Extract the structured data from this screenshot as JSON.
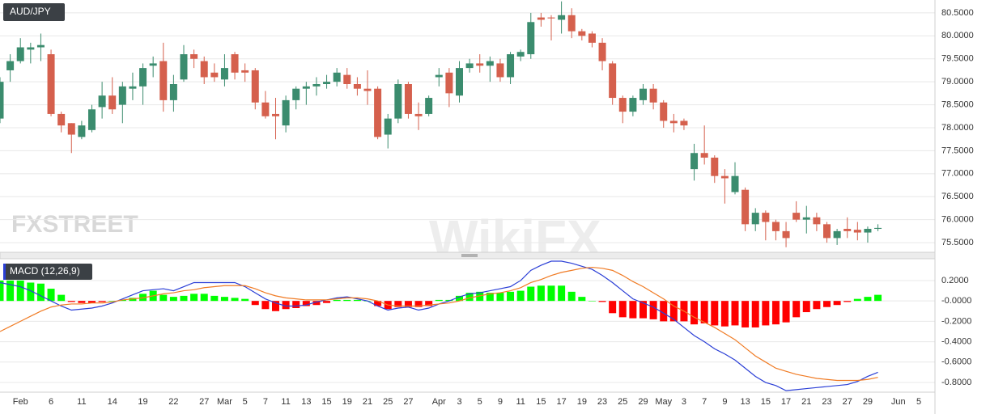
{
  "watermarks": [
    "FXSTREET",
    "WikiFX"
  ],
  "chart_data": [
    {
      "type": "candlestick",
      "title": "AUD/JPY",
      "up_color": "#3b8c6e",
      "down_color": "#d5604d",
      "grid": true,
      "ylim": [
        75.29,
        80.78
      ],
      "yticks": [
        {
          "value": 75.5,
          "label": "75.5000"
        },
        {
          "value": 76,
          "label": "76.0000"
        },
        {
          "value": 76.5,
          "label": "76.5000"
        },
        {
          "value": 77,
          "label": "77.0000"
        },
        {
          "value": 77.5,
          "label": "77.5000"
        },
        {
          "value": 78,
          "label": "78.0000"
        },
        {
          "value": 78.5,
          "label": "78.5000"
        },
        {
          "value": 79,
          "label": "79.0000"
        },
        {
          "value": 79.5,
          "label": "79.5000"
        },
        {
          "value": 80,
          "label": "80.0000"
        },
        {
          "value": 80.5,
          "label": "80.5000"
        }
      ],
      "open": [
        78.2,
        79.25,
        79.45,
        79.7,
        79.75,
        79.6,
        78.3,
        78.1,
        77.8,
        77.95,
        78.45,
        78.7,
        78.5,
        78.85,
        78.9,
        79.35,
        79.45,
        78.6,
        79.05,
        79.6,
        79.45,
        79.2,
        79.05,
        79.6,
        79.25,
        79.25,
        78.55,
        78.3,
        78.05,
        78.6,
        78.85,
        78.9,
        78.95,
        79.0,
        79.15,
        78.95,
        78.85,
        78.85,
        77.85,
        78.2,
        78.95,
        78.3,
        78.3,
        79.1,
        79.2,
        78.7,
        79.3,
        79.4,
        79.35,
        79.4,
        79.1,
        79.55,
        79.6,
        80.4,
        80.4,
        80.35,
        80.45,
        80.1,
        80.05,
        79.85,
        79.4,
        78.65,
        78.35,
        78.6,
        78.85,
        78.55,
        78.15,
        78.15,
        77.1,
        77.45,
        77.35,
        76.95,
        76.6,
        76.65,
        75.9,
        76.15,
        75.95,
        75.75,
        76.15,
        76.0,
        76.05,
        75.9,
        75.6,
        75.8,
        75.78,
        75.72,
        75.8,
        null,
        null,
        null,
        null
      ],
      "high": [
        79.1,
        79.6,
        79.95,
        79.85,
        80.05,
        79.7,
        78.35,
        78.1,
        78.15,
        78.5,
        79.0,
        79.1,
        79.0,
        79.2,
        79.4,
        79.55,
        79.85,
        79.15,
        79.8,
        79.7,
        79.55,
        79.4,
        79.6,
        79.65,
        79.4,
        79.3,
        78.8,
        78.65,
        78.7,
        78.9,
        79.0,
        79.1,
        79.15,
        79.3,
        79.3,
        79.1,
        79.25,
        78.9,
        78.3,
        79.05,
        79.0,
        78.55,
        78.7,
        79.3,
        79.3,
        79.45,
        79.5,
        79.6,
        79.55,
        79.5,
        79.65,
        79.7,
        80.5,
        80.5,
        80.45,
        80.75,
        80.6,
        80.15,
        80.1,
        79.95,
        79.45,
        78.7,
        78.7,
        78.95,
        78.95,
        78.6,
        78.3,
        78.2,
        77.65,
        78.05,
        77.4,
        77.1,
        77.25,
        76.7,
        76.25,
        76.2,
        76.0,
        75.95,
        76.4,
        76.3,
        76.15,
        75.95,
        75.8,
        76.05,
        75.95,
        75.85,
        75.9,
        null,
        null,
        null,
        null
      ],
      "low": [
        78.1,
        79.0,
        79.4,
        79.4,
        79.45,
        78.25,
        77.9,
        77.45,
        77.75,
        77.9,
        78.2,
        78.3,
        78.1,
        78.6,
        78.5,
        79.1,
        78.35,
        78.35,
        79.0,
        79.3,
        78.95,
        79.0,
        78.9,
        79.05,
        79.0,
        78.4,
        78.2,
        77.75,
        77.9,
        78.4,
        78.5,
        78.7,
        78.85,
        78.9,
        78.85,
        78.7,
        78.5,
        77.75,
        77.55,
        78.1,
        78.2,
        77.95,
        78.25,
        78.9,
        78.45,
        78.55,
        79.2,
        79.2,
        79.0,
        79.0,
        78.95,
        79.45,
        79.5,
        80.2,
        79.9,
        80.05,
        79.95,
        79.9,
        79.75,
        79.25,
        78.5,
        78.1,
        78.25,
        78.5,
        78.4,
        78.0,
        77.9,
        77.95,
        76.85,
        77.2,
        76.8,
        76.35,
        76.55,
        75.75,
        75.75,
        75.55,
        75.55,
        75.4,
        75.95,
        75.7,
        75.75,
        75.5,
        75.45,
        75.6,
        75.55,
        75.5,
        75.75,
        null,
        null,
        null,
        null
      ],
      "close": [
        79.0,
        79.45,
        79.75,
        79.75,
        79.8,
        78.3,
        78.05,
        77.85,
        78.05,
        78.4,
        78.7,
        78.4,
        78.9,
        78.9,
        79.3,
        79.4,
        78.6,
        78.95,
        79.6,
        79.5,
        79.1,
        79.1,
        79.3,
        79.2,
        79.2,
        78.55,
        78.25,
        78.25,
        78.6,
        78.85,
        78.9,
        78.95,
        79.0,
        79.2,
        78.95,
        78.85,
        78.8,
        77.8,
        78.2,
        78.95,
        78.3,
        78.25,
        78.65,
        79.15,
        78.75,
        79.3,
        79.4,
        79.35,
        79.45,
        79.1,
        79.6,
        79.65,
        80.3,
        80.35,
        80.38,
        80.45,
        80.1,
        80.0,
        79.85,
        79.45,
        78.65,
        78.35,
        78.65,
        78.85,
        78.55,
        78.15,
        78.1,
        78.05,
        77.45,
        77.35,
        76.95,
        76.9,
        76.95,
        75.9,
        76.15,
        75.95,
        75.75,
        75.6,
        76.0,
        76.05,
        75.9,
        75.6,
        75.75,
        75.75,
        75.72,
        75.8,
        75.82,
        null,
        null,
        null,
        null
      ]
    },
    {
      "type": "macd",
      "title": "MACD (12,26,9)",
      "grid": true,
      "ylim": [
        -0.895,
        0.398
      ],
      "yticks": [
        {
          "value": 0.2,
          "label": "0.2000"
        },
        {
          "value": 0,
          "label": "-0.0000"
        },
        {
          "value": -0.2,
          "label": "-0.2000"
        },
        {
          "value": -0.4,
          "label": "-0.4000"
        },
        {
          "value": -0.6,
          "label": "-0.6000"
        },
        {
          "value": -0.8,
          "label": "-0.8000"
        }
      ],
      "categories": [
        null,
        null,
        "Feb",
        null,
        null,
        "6",
        null,
        null,
        "11",
        null,
        null,
        "14",
        null,
        null,
        "19",
        null,
        null,
        "22",
        null,
        null,
        "27",
        null,
        "Mar",
        null,
        "5",
        null,
        "7",
        null,
        "11",
        null,
        "13",
        null,
        "15",
        null,
        "19",
        null,
        "21",
        null,
        "25",
        null,
        "27",
        null,
        null,
        "Apr",
        null,
        "3",
        null,
        "5",
        null,
        "9",
        null,
        "11",
        null,
        "15",
        null,
        "17",
        null,
        "19",
        null,
        "23",
        null,
        "25",
        null,
        "29",
        null,
        "May",
        null,
        "3",
        null,
        "7",
        null,
        "9",
        null,
        "13",
        null,
        "15",
        null,
        "17",
        null,
        "21",
        null,
        "23",
        null,
        "27",
        null,
        "29",
        null,
        null,
        "Jun",
        null,
        "5"
      ],
      "histogram": {
        "pos_color": "#00ff00",
        "neg_color": "#ff0000",
        "values": [
          0.2,
          0.2,
          0.2,
          0.18,
          0.17,
          0.12,
          0.06,
          -0.01,
          -0.02,
          -0.02,
          -0.01,
          0.0,
          0.01,
          0.03,
          0.07,
          0.1,
          0.06,
          0.04,
          0.05,
          0.07,
          0.07,
          0.05,
          0.04,
          0.03,
          0.02,
          -0.04,
          -0.08,
          -0.1,
          -0.08,
          -0.07,
          -0.05,
          -0.04,
          -0.02,
          0.01,
          0.01,
          0.01,
          0.0,
          -0.05,
          -0.08,
          -0.06,
          -0.06,
          -0.06,
          -0.05,
          0.01,
          0.01,
          0.05,
          0.08,
          0.09,
          0.08,
          0.08,
          0.09,
          0.1,
          0.14,
          0.15,
          0.15,
          0.15,
          0.09,
          0.04,
          0.0,
          -0.01,
          -0.12,
          -0.16,
          -0.17,
          -0.17,
          -0.18,
          -0.2,
          -0.2,
          -0.2,
          -0.23,
          -0.22,
          -0.24,
          -0.25,
          -0.24,
          -0.26,
          -0.26,
          -0.24,
          -0.23,
          -0.21,
          -0.16,
          -0.11,
          -0.08,
          -0.06,
          -0.04,
          -0.01,
          0.02,
          0.04,
          0.06,
          null,
          null,
          null,
          null
        ]
      },
      "series": [
        {
          "color": "#2b3fd6",
          "values": [
            0.18,
            0.16,
            0.14,
            0.1,
            0.05,
            0.0,
            -0.05,
            -0.09,
            -0.08,
            -0.07,
            -0.05,
            -0.02,
            0.02,
            0.06,
            0.1,
            0.11,
            0.12,
            0.1,
            0.14,
            0.18,
            0.18,
            0.18,
            0.18,
            0.18,
            0.14,
            0.08,
            0.02,
            -0.02,
            -0.05,
            -0.05,
            -0.04,
            -0.01,
            0.01,
            0.03,
            0.04,
            0.02,
            0.0,
            -0.05,
            -0.09,
            -0.07,
            -0.06,
            -0.09,
            -0.07,
            -0.03,
            0.0,
            0.04,
            0.07,
            0.08,
            0.1,
            0.12,
            0.14,
            0.2,
            0.3,
            0.35,
            0.39,
            0.39,
            0.37,
            0.34,
            0.31,
            0.25,
            0.18,
            0.1,
            0.02,
            -0.02,
            -0.06,
            -0.12,
            -0.18,
            -0.26,
            -0.34,
            -0.4,
            -0.47,
            -0.52,
            -0.58,
            -0.66,
            -0.74,
            -0.8,
            -0.83,
            -0.88,
            -0.87,
            -0.86,
            -0.85,
            -0.84,
            -0.83,
            -0.82,
            -0.79,
            -0.74,
            -0.7,
            null,
            null,
            null,
            null
          ]
        },
        {
          "color": "#f07b24",
          "values": [
            -0.3,
            -0.25,
            -0.2,
            -0.15,
            -0.1,
            -0.06,
            -0.04,
            -0.03,
            -0.03,
            -0.02,
            -0.02,
            -0.01,
            0.01,
            0.02,
            0.03,
            0.05,
            0.07,
            0.08,
            0.1,
            0.11,
            0.13,
            0.14,
            0.15,
            0.15,
            0.15,
            0.12,
            0.08,
            0.05,
            0.03,
            0.02,
            0.01,
            0.01,
            0.01,
            0.02,
            0.03,
            0.03,
            0.02,
            0.0,
            -0.04,
            -0.05,
            -0.05,
            -0.05,
            -0.04,
            -0.03,
            -0.02,
            0.0,
            0.03,
            0.05,
            0.07,
            0.08,
            0.1,
            0.13,
            0.18,
            0.21,
            0.25,
            0.28,
            0.3,
            0.32,
            0.33,
            0.32,
            0.3,
            0.25,
            0.19,
            0.14,
            0.08,
            0.02,
            -0.05,
            -0.1,
            -0.16,
            -0.21,
            -0.26,
            -0.32,
            -0.38,
            -0.46,
            -0.54,
            -0.6,
            -0.66,
            -0.69,
            -0.72,
            -0.74,
            -0.76,
            -0.77,
            -0.78,
            -0.78,
            -0.78,
            -0.77,
            -0.75,
            null,
            null,
            null,
            null
          ]
        }
      ]
    }
  ]
}
